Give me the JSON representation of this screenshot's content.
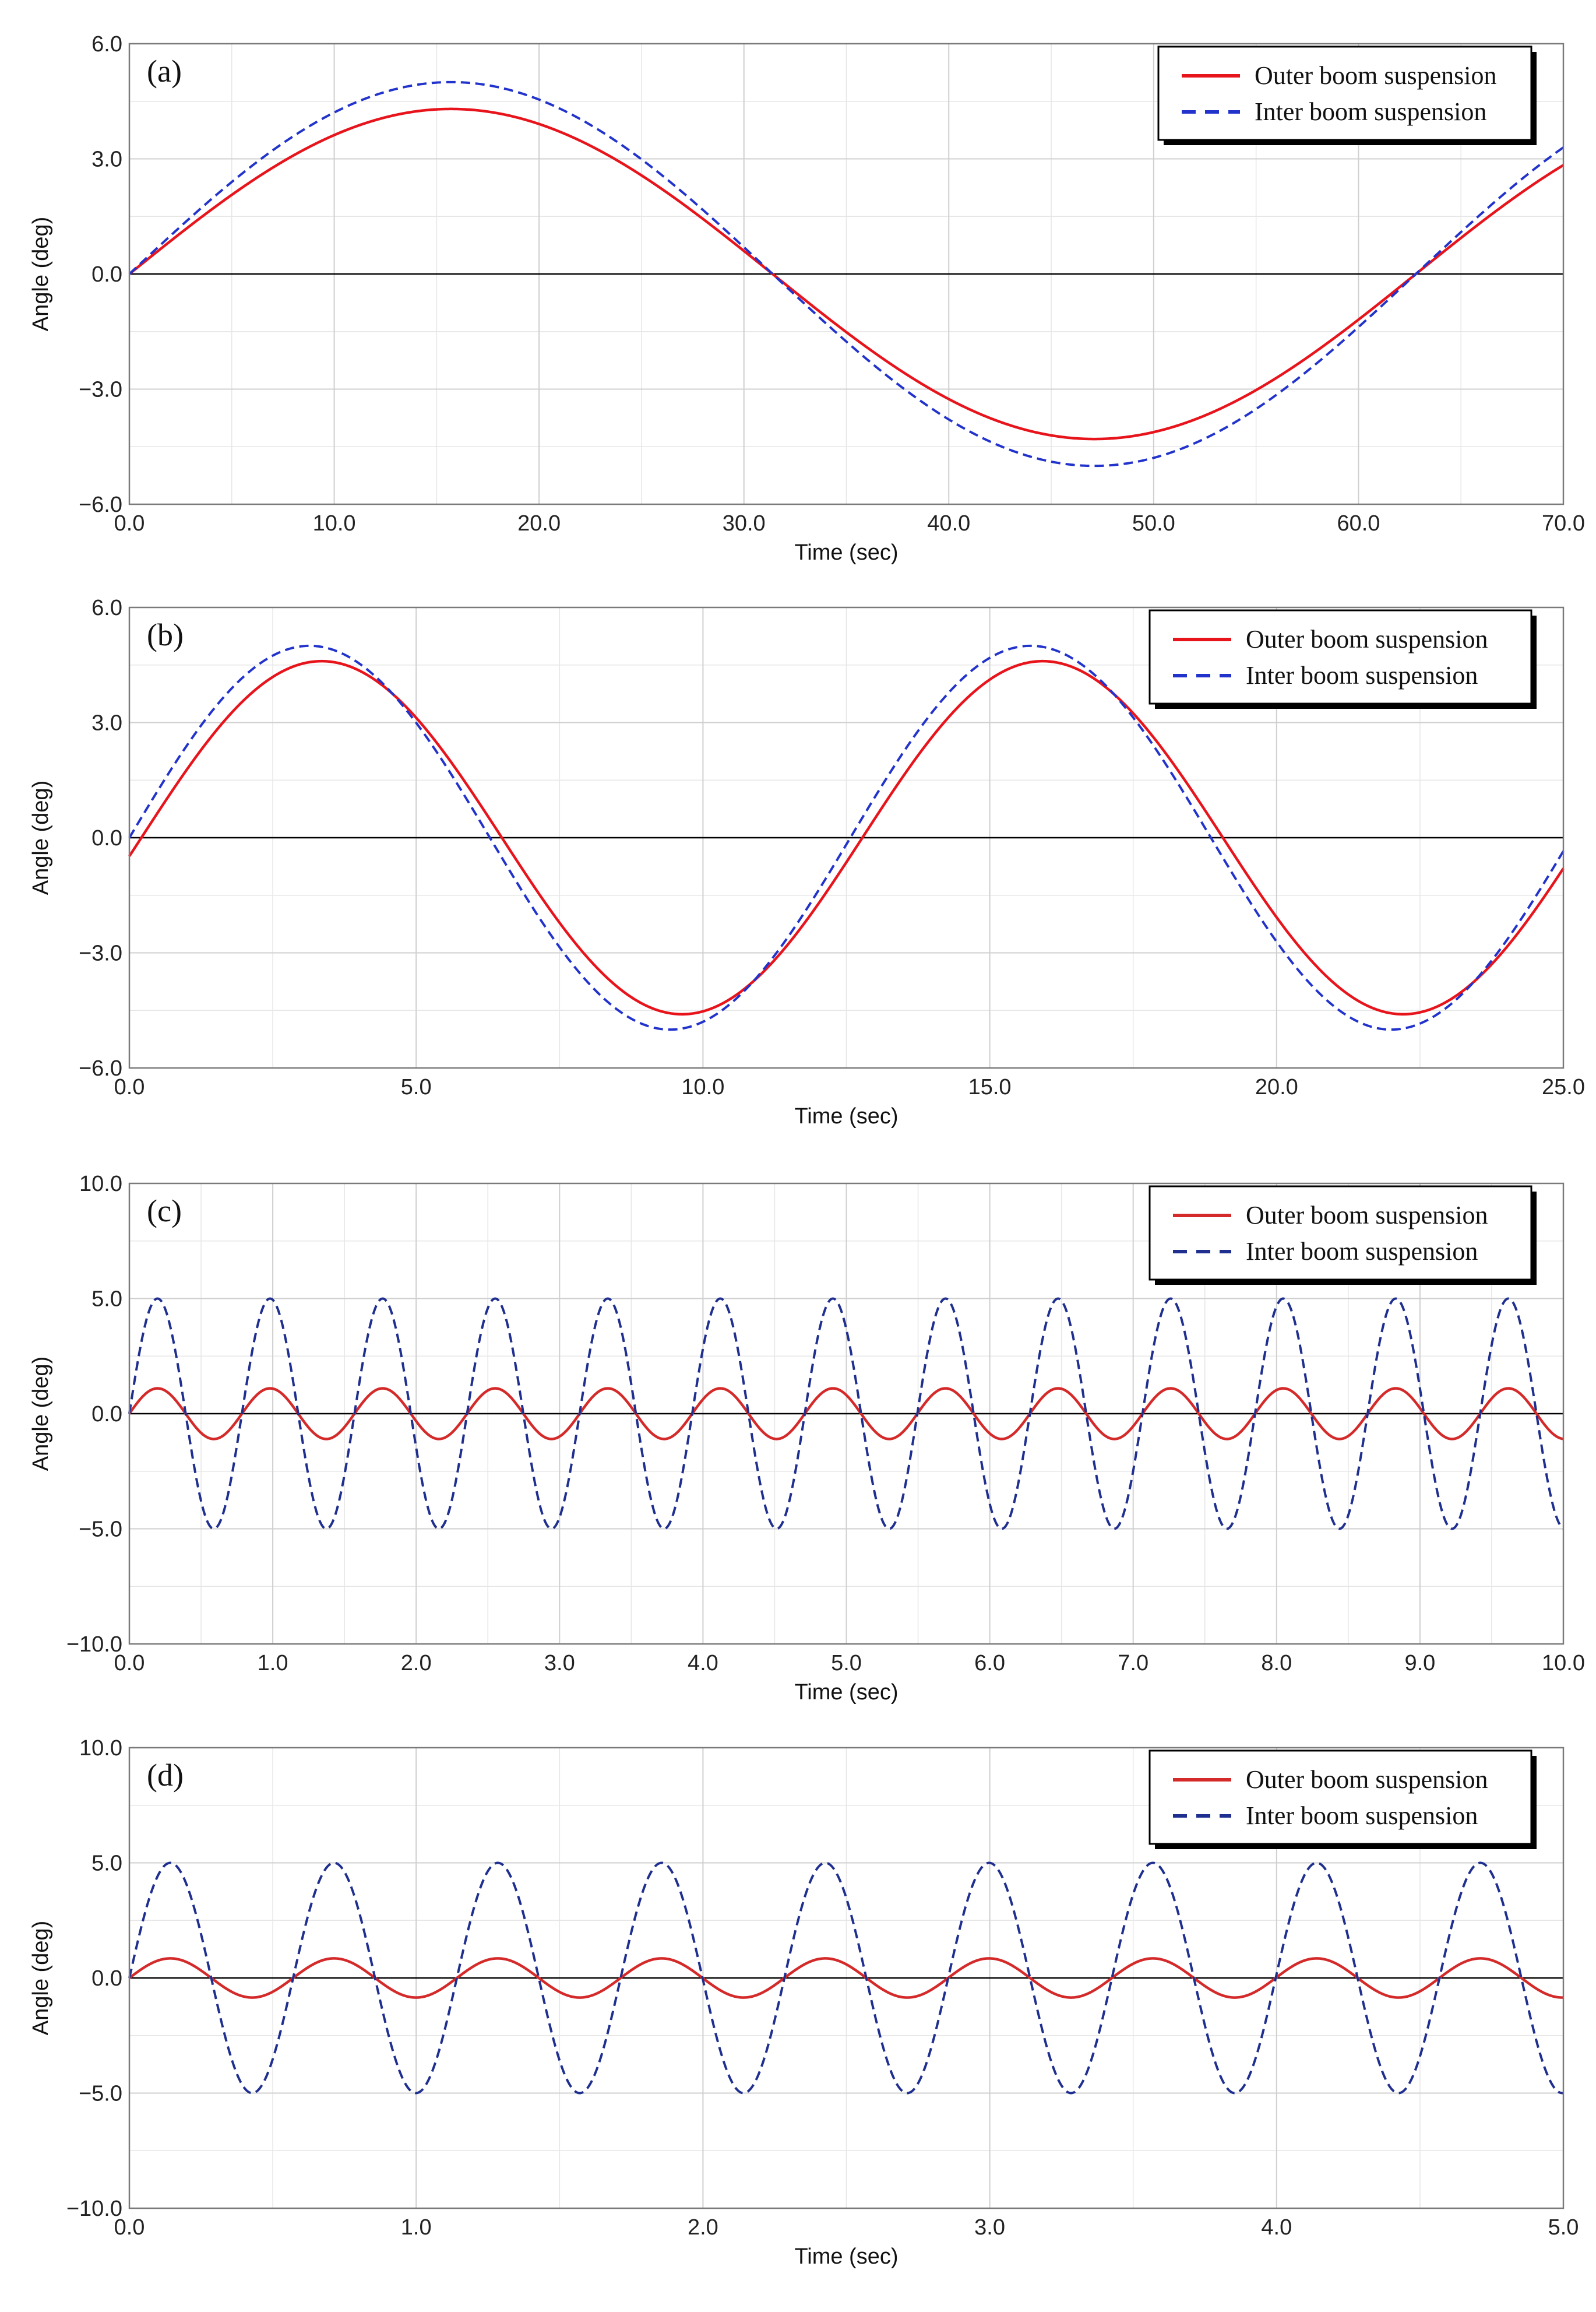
{
  "chart_data": [
    {
      "panel": "(a)",
      "type": "line",
      "xlabel": "Time (sec)",
      "ylabel": "Angle (deg)",
      "xlim": [
        0,
        70
      ],
      "ylim": [
        -6,
        6
      ],
      "xticks": [
        0,
        10,
        20,
        30,
        40,
        50,
        60,
        70
      ],
      "xtick_labels": [
        "0.0",
        "10.0",
        "20.0",
        "30.0",
        "40.0",
        "50.0",
        "60.0",
        "70.0"
      ],
      "yticks": [
        -6,
        -3,
        0,
        3,
        6
      ],
      "ytick_labels": [
        "−6.0",
        "−3.0",
        "0.0",
        "3.0",
        "6.0"
      ],
      "x_minor_step": 5,
      "y_minor_step": 1.5,
      "legend_position": "top-right",
      "series": [
        {
          "name": "Outer boom suspension",
          "style": "solid",
          "color": "#e8141c",
          "function": "sine",
          "amplitude": 4.3,
          "period": 62.8,
          "phase_deg": 0
        },
        {
          "name": "Inter boom suspension",
          "style": "dashed",
          "color": "#2233cc",
          "function": "sine",
          "amplitude": 5.0,
          "period": 62.8,
          "phase_deg": 0
        }
      ]
    },
    {
      "panel": "(b)",
      "type": "line",
      "xlabel": "Time (sec)",
      "ylabel": "Angle (deg)",
      "xlim": [
        0,
        25
      ],
      "ylim": [
        -6,
        6
      ],
      "xticks": [
        0,
        5,
        10,
        15,
        20,
        25
      ],
      "xtick_labels": [
        "0.0",
        "5.0",
        "10.0",
        "15.0",
        "20.0",
        "25.0"
      ],
      "yticks": [
        -6,
        -3,
        0,
        3,
        6
      ],
      "ytick_labels": [
        "−6.0",
        "−3.0",
        "0.0",
        "3.0",
        "6.0"
      ],
      "x_minor_step": 2.5,
      "y_minor_step": 1.5,
      "legend_position": "top-right",
      "series": [
        {
          "name": "Outer boom suspension",
          "style": "solid",
          "color": "#e8141c",
          "function": "sine",
          "amplitude": 4.6,
          "period": 12.57,
          "phase_deg": -6
        },
        {
          "name": "Inter boom suspension",
          "style": "dashed",
          "color": "#2233cc",
          "function": "sine",
          "amplitude": 5.0,
          "period": 12.57,
          "phase_deg": 0
        }
      ]
    },
    {
      "panel": "(c)",
      "type": "line",
      "xlabel": "Time (sec)",
      "ylabel": "Angle (deg)",
      "xlim": [
        0,
        10
      ],
      "ylim": [
        -10,
        10
      ],
      "xticks": [
        0,
        1,
        2,
        3,
        4,
        5,
        6,
        7,
        8,
        9,
        10
      ],
      "xtick_labels": [
        "0.0",
        "1.0",
        "2.0",
        "3.0",
        "4.0",
        "5.0",
        "6.0",
        "7.0",
        "8.0",
        "9.0",
        "10.0"
      ],
      "yticks": [
        -10,
        -5,
        0,
        5,
        10
      ],
      "ytick_labels": [
        "−10.0",
        "−5.0",
        "0.0",
        "5.0",
        "10.0"
      ],
      "x_minor_step": 0.5,
      "y_minor_step": 2.5,
      "legend_position": "top-right",
      "series": [
        {
          "name": "Outer boom suspension",
          "style": "solid",
          "color": "#d42a2a",
          "function": "sine",
          "amplitude": 1.1,
          "period": 0.785,
          "phase_deg": 0
        },
        {
          "name": "Inter boom suspension",
          "style": "dashed",
          "color": "#1f2f8f",
          "function": "sine",
          "amplitude": 5.0,
          "period": 0.785,
          "phase_deg": 0
        }
      ]
    },
    {
      "panel": "(d)",
      "type": "line",
      "xlabel": "Time (sec)",
      "ylabel": "Angle (deg)",
      "xlim": [
        0,
        5
      ],
      "ylim": [
        -10,
        10
      ],
      "xticks": [
        0,
        1,
        2,
        3,
        4,
        5
      ],
      "xtick_labels": [
        "0.0",
        "1.0",
        "2.0",
        "3.0",
        "4.0",
        "5.0"
      ],
      "yticks": [
        -10,
        -5,
        0,
        5,
        10
      ],
      "ytick_labels": [
        "−10.0",
        "−5.0",
        "0.0",
        "5.0",
        "10.0"
      ],
      "x_minor_step": 0.5,
      "y_minor_step": 2.5,
      "legend_position": "top-right",
      "series": [
        {
          "name": "Outer boom suspension",
          "style": "solid",
          "color": "#d42a2a",
          "function": "sine",
          "amplitude": 0.85,
          "period": 0.571,
          "phase_deg": 0
        },
        {
          "name": "Inter boom suspension",
          "style": "dashed",
          "color": "#1f2f8f",
          "function": "sine",
          "amplitude": 5.0,
          "period": 0.571,
          "phase_deg": 0
        }
      ]
    }
  ]
}
